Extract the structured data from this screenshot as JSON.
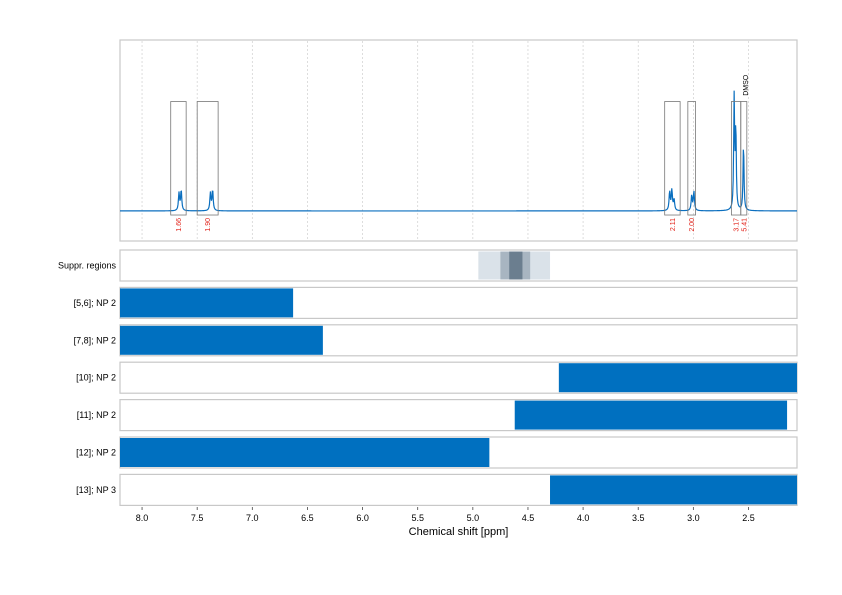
{
  "chart_data": {
    "type": "nmr-spectrum-with-regions",
    "xlabel": "Chemical shift [ppm]",
    "x_reversed": true,
    "xlim": [
      8.2,
      2.06
    ],
    "x_ticks": [
      8.0,
      7.5,
      7.0,
      6.5,
      6.0,
      5.5,
      5.0,
      4.5,
      4.0,
      3.5,
      3.0,
      2.5
    ],
    "x_tick_labels": [
      "8.0",
      "7.5",
      "7.0",
      "6.5",
      "6.0",
      "5.5",
      "5.0",
      "4.5",
      "4.0",
      "3.5",
      "3.0",
      "2.5"
    ],
    "grid": "vertical-dashed",
    "colors": {
      "spectrum": "#0b6fbf",
      "bar": "#0070c0",
      "integral_label": "#e2231a",
      "box": "#777777"
    },
    "spectrum": {
      "baseline": 0,
      "peaks": [
        {
          "ppm": 7.665,
          "height": 0.13,
          "width": 0.006
        },
        {
          "ppm": 7.645,
          "height": 0.15,
          "width": 0.006
        },
        {
          "ppm": 7.38,
          "height": 0.13,
          "width": 0.006
        },
        {
          "ppm": 7.36,
          "height": 0.15,
          "width": 0.006
        },
        {
          "ppm": 3.215,
          "height": 0.14,
          "width": 0.006
        },
        {
          "ppm": 3.195,
          "height": 0.15,
          "width": 0.006
        },
        {
          "ppm": 3.175,
          "height": 0.08,
          "width": 0.006
        },
        {
          "ppm": 3.015,
          "height": 0.11,
          "width": 0.006
        },
        {
          "ppm": 2.995,
          "height": 0.14,
          "width": 0.006
        },
        {
          "ppm": 2.63,
          "height": 0.82,
          "width": 0.005
        },
        {
          "ppm": 2.615,
          "height": 0.6,
          "width": 0.005
        },
        {
          "ppm": 2.545,
          "height": 0.5,
          "width": 0.005
        }
      ],
      "ylim": [
        -0.22,
        1.25
      ]
    },
    "integrals": [
      {
        "from": 7.74,
        "to": 7.6,
        "value": "1.66",
        "box_top": 0.8
      },
      {
        "from": 7.5,
        "to": 7.31,
        "value": "1.90",
        "box_top": 0.8
      },
      {
        "from": 3.26,
        "to": 3.12,
        "value": "2.11",
        "box_top": 0.8
      },
      {
        "from": 3.05,
        "to": 2.98,
        "value": "2.00",
        "box_top": 0.8
      },
      {
        "from": 2.655,
        "to": 2.57,
        "value": "3.17",
        "box_top": 0.8
      },
      {
        "from": 2.57,
        "to": 2.515,
        "value": "5.41",
        "box_top": 0.8
      }
    ],
    "annotations": [
      {
        "text": "DMSO",
        "ppm": 2.525
      }
    ],
    "suppressed_regions": {
      "label": "Suppr. regions",
      "bands": [
        {
          "from": 4.95,
          "to": 4.3,
          "color": "#dae2e9"
        },
        {
          "from": 4.75,
          "to": 4.48,
          "color": "#a8b5c1"
        },
        {
          "from": 4.67,
          "to": 4.55,
          "color": "#6b7e8f"
        }
      ]
    },
    "region_rows": [
      {
        "label": "[5,6]; NP 2",
        "from": 8.2,
        "to": 6.63
      },
      {
        "label": "[7,8]; NP 2",
        "from": 8.2,
        "to": 6.36
      },
      {
        "label": "[10]; NP 2",
        "from": 4.22,
        "to": 2.06
      },
      {
        "label": "[11]; NP 2",
        "from": 4.62,
        "to": 2.15
      },
      {
        "label": "[12]; NP 2",
        "from": 8.2,
        "to": 4.85
      },
      {
        "label": "[13]; NP 3",
        "from": 4.3,
        "to": 2.06
      }
    ]
  }
}
